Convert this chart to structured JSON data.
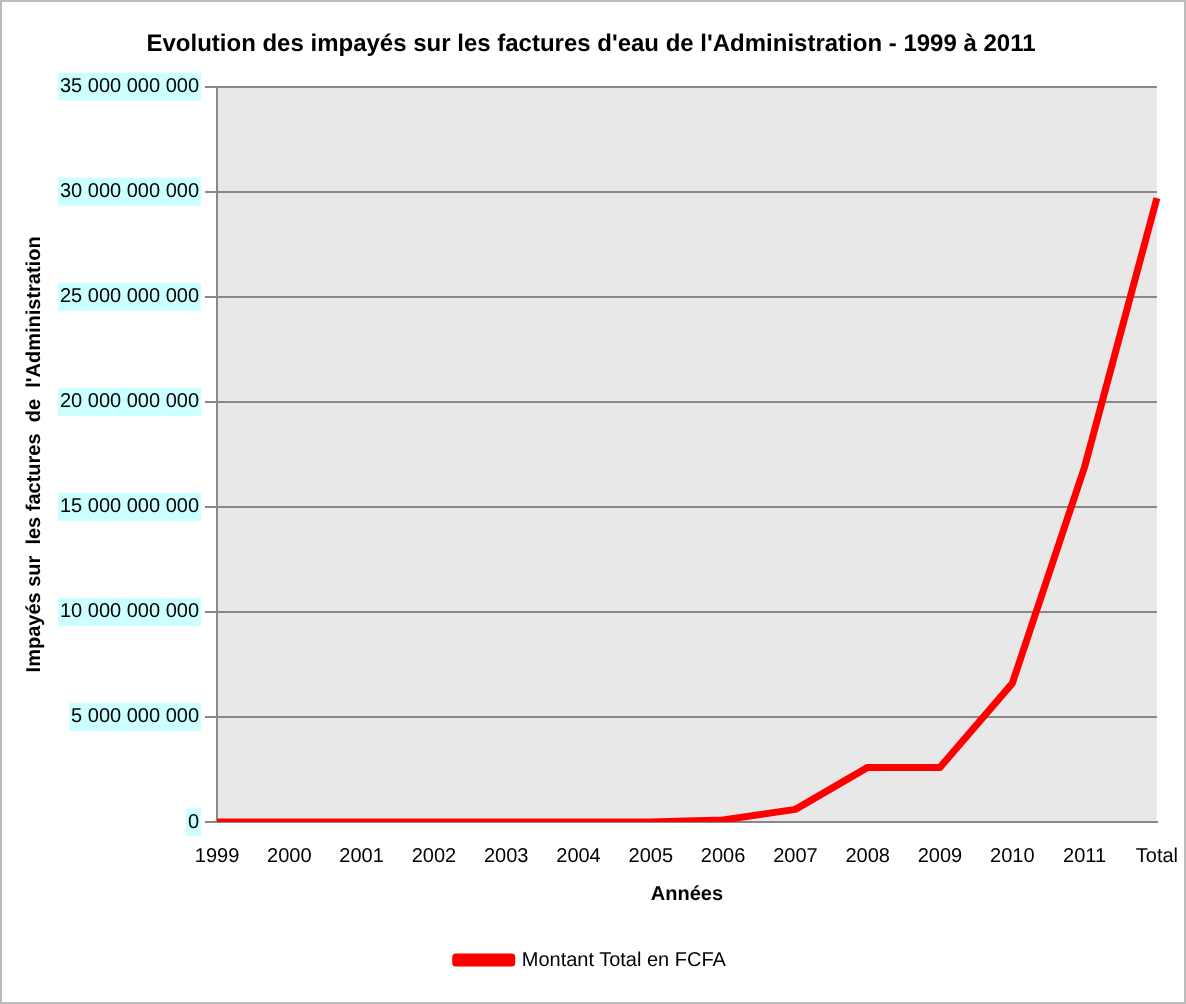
{
  "chart_data": {
    "type": "line",
    "title": "Evolution des impayés sur les factures d'eau de l'Administration - 1999 à 2011",
    "xlabel": "Années",
    "ylabel": "Impayés sur  les factures  de  l'Administration",
    "categories": [
      "1999",
      "2000",
      "2001",
      "2002",
      "2003",
      "2004",
      "2005",
      "2006",
      "2007",
      "2008",
      "2009",
      "2010",
      "2011",
      "Total"
    ],
    "series": [
      {
        "name": "Montant Total en FCFA",
        "color": "#ff0000",
        "values": [
          0,
          0,
          0,
          0,
          0,
          0,
          0,
          100000000,
          600000000,
          2600000000,
          2600000000,
          6600000000,
          16900000000,
          29700000000
        ]
      }
    ],
    "ylim": [
      0,
      35000000000
    ],
    "yticks": [
      0,
      {
        "value": 5000000000,
        "label": "5 000 000 000"
      },
      {
        "value": 10000000000,
        "label": "10 000 000 000"
      },
      {
        "value": 15000000000,
        "label": "15 000 000 000"
      },
      {
        "value": 20000000000,
        "label": "20 000 000 000"
      },
      {
        "value": 25000000000,
        "label": "25 000 000 000"
      },
      {
        "value": 30000000000,
        "label": "30 000 000 000"
      },
      {
        "value": 35000000000,
        "label": "35 000 000 000"
      }
    ],
    "grid": "y",
    "legend": "bottom",
    "marker": "none",
    "line_style": "solid"
  }
}
